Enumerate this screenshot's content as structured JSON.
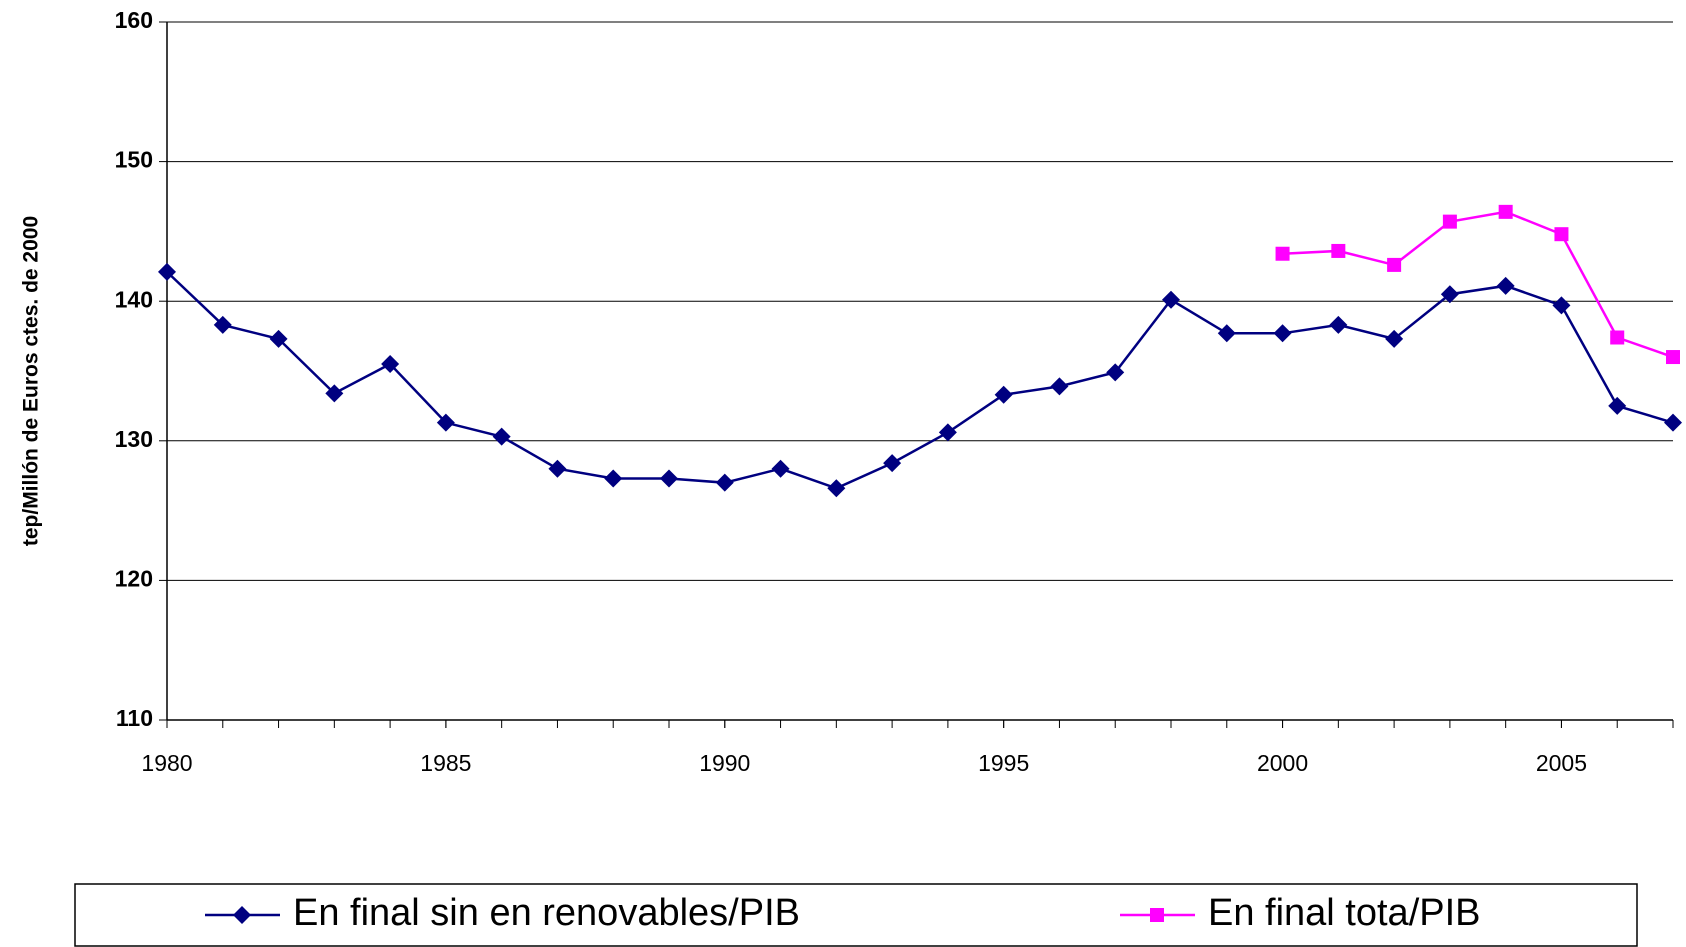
{
  "chart_data": {
    "type": "line",
    "y_label": "tep/Millón de Euros ctes. de 2000",
    "x": [
      1980,
      1981,
      1982,
      1983,
      1984,
      1985,
      1986,
      1987,
      1988,
      1989,
      1990,
      1991,
      1992,
      1993,
      1994,
      1995,
      1996,
      1997,
      1998,
      1999,
      2000,
      2001,
      2002,
      2003,
      2004,
      2005,
      2006,
      2007
    ],
    "series": [
      {
        "name": "En final sin en renovables/PIB",
        "color": "#000080",
        "marker": "diamond",
        "values": [
          142.1,
          138.3,
          137.3,
          133.4,
          135.5,
          131.3,
          130.3,
          128.0,
          127.3,
          127.3,
          127.0,
          128.0,
          126.6,
          128.4,
          130.6,
          133.3,
          133.9,
          134.9,
          140.1,
          137.7,
          137.7,
          138.3,
          137.3,
          140.5,
          141.1,
          139.7,
          132.5,
          131.3
        ]
      },
      {
        "name": "En final tota/PIB",
        "color": "#ff00ff",
        "marker": "square",
        "values": [
          null,
          null,
          null,
          null,
          null,
          null,
          null,
          null,
          null,
          null,
          null,
          null,
          null,
          null,
          null,
          null,
          null,
          null,
          null,
          null,
          143.4,
          143.6,
          142.6,
          145.7,
          146.4,
          144.8,
          137.4,
          136.0
        ]
      }
    ],
    "xlim": [
      1980,
      2007
    ],
    "xticks": [
      1980,
      1985,
      1990,
      1995,
      2000,
      2005
    ],
    "ylim": [
      110,
      160
    ],
    "yticks": [
      110,
      120,
      130,
      140,
      150,
      160
    ],
    "grid": true,
    "legend": "bottom"
  }
}
